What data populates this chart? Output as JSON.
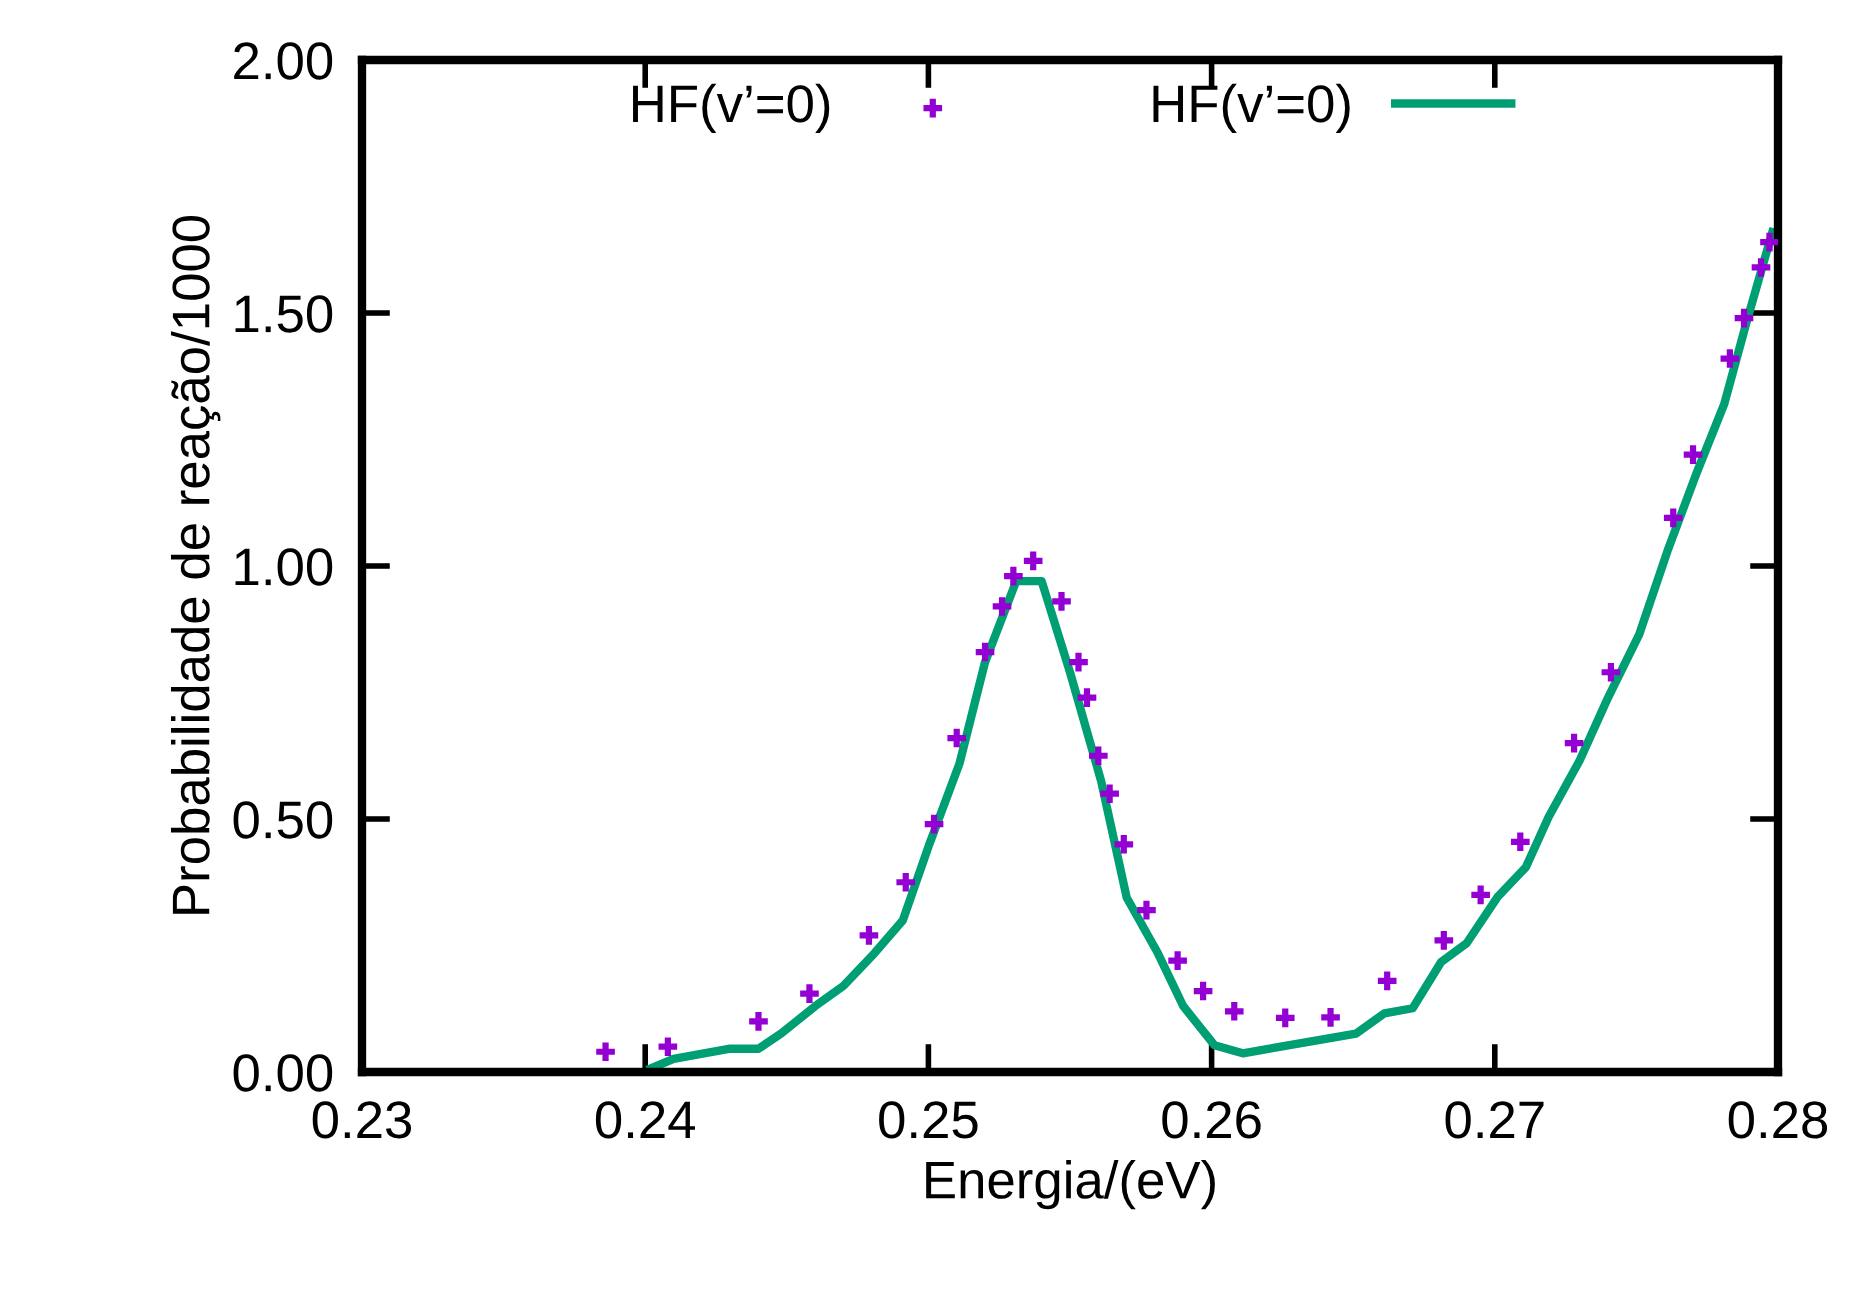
{
  "chart_data": {
    "type": "scatter",
    "xlabel": "Energia/(eV)",
    "ylabel": "Probabilidade de reação/1000",
    "xlim": [
      0.23,
      0.28
    ],
    "xticks": [
      0.23,
      0.24,
      0.25,
      0.26,
      0.27,
      0.28
    ],
    "ylim": [
      0,
      2
    ],
    "yticks": [
      {
        "value": 0,
        "label": "0.00"
      },
      {
        "value": 0.5,
        "label": "0.50"
      },
      {
        "value": 1,
        "label": "1.00"
      },
      {
        "value": 1.5,
        "label": "1.50"
      },
      {
        "value": 2,
        "label": "2.00"
      }
    ],
    "grid": false,
    "legend": "top",
    "series": [
      {
        "name": "HF(v’=0)",
        "marker": "cross",
        "color": "#9400d3",
        "x": [
          0.2386,
          0.2408,
          0.244,
          0.2458,
          0.2479,
          0.2492,
          0.2502,
          0.251,
          0.252,
          0.2526,
          0.253,
          0.2537,
          0.2547,
          0.2553,
          0.2556,
          0.256,
          0.2564,
          0.2569,
          0.2577,
          0.2588,
          0.2597,
          0.2608,
          0.2626,
          0.2642,
          0.2662,
          0.2682,
          0.2695,
          0.2709,
          0.2728,
          0.2741,
          0.2763,
          0.277,
          0.2783,
          0.2788,
          0.2794,
          0.2797
        ],
        "values": [
          0.04,
          0.05,
          0.1,
          0.155,
          0.27,
          0.375,
          0.49,
          0.66,
          0.83,
          0.92,
          0.98,
          1.01,
          0.93,
          0.81,
          0.74,
          0.625,
          0.55,
          0.45,
          0.32,
          0.22,
          0.16,
          0.12,
          0.107,
          0.108,
          0.18,
          0.26,
          0.35,
          0.455,
          0.65,
          0.79,
          1.095,
          1.22,
          1.41,
          1.49,
          1.59,
          1.64
        ]
      },
      {
        "name": "HF(v’=0)",
        "type": "line",
        "line_style": "solid",
        "color": "#009e73",
        "x": [
          0.2402,
          0.241,
          0.243,
          0.244,
          0.2448,
          0.246,
          0.247,
          0.2481,
          0.2491,
          0.25,
          0.2511,
          0.252,
          0.2531,
          0.254,
          0.255,
          0.2561,
          0.257,
          0.2581,
          0.259,
          0.2601,
          0.2611,
          0.2651,
          0.2661,
          0.2671,
          0.2681,
          0.269,
          0.2701,
          0.2711,
          0.2719,
          0.273,
          0.274,
          0.2751,
          0.2761,
          0.2771,
          0.2781,
          0.2789,
          0.2798
        ],
        "values": [
          0.007,
          0.026,
          0.046,
          0.046,
          0.076,
          0.13,
          0.17,
          0.235,
          0.3,
          0.445,
          0.61,
          0.81,
          0.97,
          0.97,
          0.79,
          0.575,
          0.345,
          0.235,
          0.13,
          0.053,
          0.037,
          0.076,
          0.116,
          0.126,
          0.217,
          0.254,
          0.346,
          0.405,
          0.504,
          0.616,
          0.74,
          0.865,
          1.03,
          1.18,
          1.32,
          1.484,
          1.66
        ]
      }
    ]
  }
}
